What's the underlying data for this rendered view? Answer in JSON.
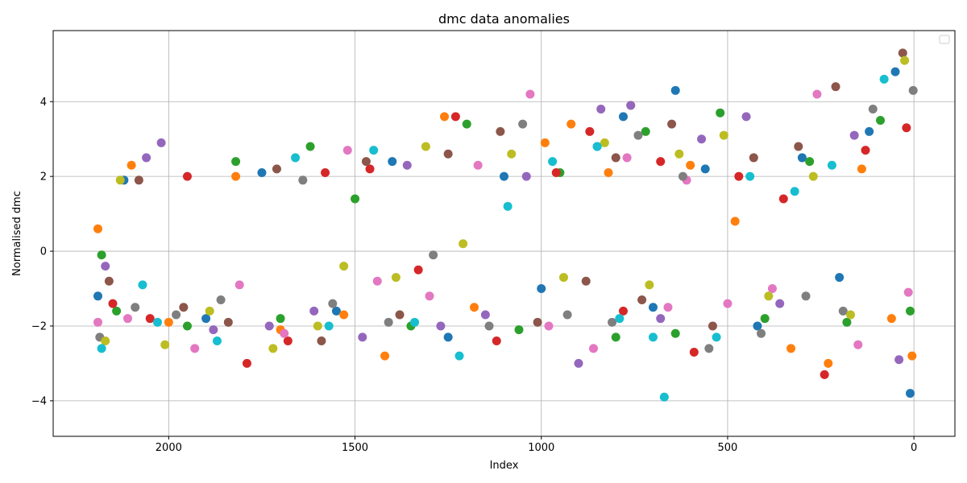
{
  "chart_data": {
    "type": "scatter",
    "title": "dmc data anomalies",
    "xlabel": "Index",
    "ylabel": "Normalised dmc",
    "xlim": [
      2310,
      -110
    ],
    "ylim": [
      -4.95,
      5.9
    ],
    "x_inverted": true,
    "xticks": [
      2000,
      1500,
      1000,
      500,
      0
    ],
    "yticks": [
      -4,
      -2,
      0,
      2,
      4
    ],
    "grid": true,
    "legend": "top-right",
    "legend_entries": [],
    "series_colors": [
      "#1f77b4",
      "#ff7f0e",
      "#2ca02c",
      "#d62728",
      "#9467bd",
      "#8c564b",
      "#e377c2",
      "#7f7f7f",
      "#bcbd22",
      "#17becf"
    ],
    "x_range": [
      0,
      2200
    ],
    "series": [
      {
        "color": "#1f77b4",
        "x": [
          2190,
          2120,
          1900,
          1750,
          1550,
          1400,
          1250,
          1100,
          1000,
          850,
          780,
          700,
          640,
          560,
          420,
          300,
          200,
          120,
          50,
          10
        ],
        "y": [
          -1.2,
          1.9,
          -1.8,
          2.1,
          -1.6,
          2.4,
          -2.3,
          2.0,
          -1.0,
          2.8,
          3.6,
          -1.5,
          4.3,
          2.2,
          -2.0,
          2.5,
          -0.7,
          3.2,
          4.8,
          -3.8
        ]
      },
      {
        "color": "#ff7f0e",
        "x": [
          2190,
          2100,
          2000,
          1820,
          1700,
          1530,
          1420,
          1260,
          1180,
          990,
          920,
          820,
          760,
          600,
          480,
          330,
          230,
          140,
          60,
          5
        ],
        "y": [
          0.6,
          2.3,
          -1.9,
          2.0,
          -2.1,
          -1.7,
          -2.8,
          3.6,
          -1.5,
          2.9,
          3.4,
          2.1,
          3.9,
          2.3,
          0.8,
          -2.6,
          -3.0,
          2.2,
          -1.8,
          -2.8
        ]
      },
      {
        "color": "#2ca02c",
        "x": [
          2180,
          2140,
          1950,
          1820,
          1700,
          1620,
          1500,
          1350,
          1200,
          1060,
          950,
          800,
          720,
          640,
          520,
          400,
          280,
          180,
          90,
          10
        ],
        "y": [
          -0.1,
          -1.6,
          -2.0,
          2.4,
          -1.8,
          2.8,
          1.4,
          -2.0,
          3.4,
          -2.1,
          2.1,
          -2.3,
          3.2,
          -2.2,
          3.7,
          -1.8,
          2.4,
          -1.9,
          3.5,
          -1.6
        ]
      },
      {
        "color": "#d62728",
        "x": [
          2150,
          2050,
          1950,
          1790,
          1680,
          1580,
          1460,
          1330,
          1230,
          1120,
          960,
          870,
          780,
          680,
          590,
          470,
          350,
          240,
          130,
          20
        ],
        "y": [
          -1.4,
          -1.8,
          2.0,
          -3.0,
          -2.4,
          2.1,
          2.2,
          -0.5,
          3.6,
          -2.4,
          2.1,
          3.2,
          -1.6,
          2.4,
          -2.7,
          2.0,
          1.4,
          -3.3,
          2.7,
          3.3
        ]
      },
      {
        "color": "#9467bd",
        "x": [
          2170,
          2060,
          2020,
          1880,
          1730,
          1610,
          1480,
          1360,
          1270,
          1150,
          1040,
          900,
          840,
          760,
          680,
          570,
          450,
          360,
          160,
          40
        ],
        "y": [
          -0.4,
          2.5,
          2.9,
          -2.1,
          -2.0,
          -1.6,
          -2.3,
          2.3,
          -2.0,
          -1.7,
          2.0,
          -3.0,
          3.8,
          3.9,
          -1.8,
          3.0,
          3.6,
          -1.4,
          3.1,
          -2.9
        ]
      },
      {
        "color": "#8c564b",
        "x": [
          2160,
          2080,
          1960,
          1840,
          1710,
          1590,
          1470,
          1380,
          1250,
          1110,
          1010,
          880,
          800,
          730,
          650,
          540,
          430,
          310,
          210,
          30
        ],
        "y": [
          -0.8,
          1.9,
          -1.5,
          -1.9,
          2.2,
          -2.4,
          2.4,
          -1.7,
          2.6,
          3.2,
          -1.9,
          -0.8,
          2.5,
          -1.3,
          3.4,
          -2.0,
          2.5,
          2.8,
          4.4,
          5.3
        ]
      },
      {
        "color": "#e377c2",
        "x": [
          2190,
          2110,
          1930,
          1810,
          1690,
          1520,
          1440,
          1300,
          1170,
          1030,
          980,
          860,
          770,
          660,
          610,
          500,
          380,
          260,
          150,
          15
        ],
        "y": [
          -1.9,
          -1.8,
          -2.6,
          -0.9,
          -2.2,
          2.7,
          -0.8,
          -1.2,
          2.3,
          4.2,
          -2.0,
          -2.6,
          2.5,
          -1.5,
          1.9,
          -1.4,
          -1.0,
          4.2,
          -2.5,
          -1.1
        ]
      },
      {
        "color": "#7f7f7f",
        "x": [
          2185,
          2090,
          1980,
          1860,
          1640,
          1560,
          1410,
          1290,
          1140,
          1050,
          930,
          810,
          740,
          620,
          550,
          410,
          290,
          190,
          110,
          2
        ],
        "y": [
          -2.3,
          -1.5,
          -1.7,
          -1.3,
          1.9,
          -1.4,
          -1.9,
          -0.1,
          -2.0,
          3.4,
          -1.7,
          -1.9,
          3.1,
          2.0,
          -2.6,
          -2.2,
          -1.2,
          -1.6,
          3.8,
          4.3
        ]
      },
      {
        "color": "#bcbd22",
        "x": [
          2170,
          2130,
          2010,
          1890,
          1720,
          1600,
          1530,
          1390,
          1310,
          1210,
          1080,
          940,
          830,
          710,
          630,
          510,
          390,
          270,
          170,
          25
        ],
        "y": [
          -2.4,
          1.9,
          -2.5,
          -1.6,
          -2.6,
          -2.0,
          -0.4,
          -0.7,
          2.8,
          0.2,
          2.6,
          -0.7,
          2.9,
          -0.9,
          2.6,
          3.1,
          -1.2,
          2.0,
          -1.7,
          5.1
        ]
      },
      {
        "color": "#17becf",
        "x": [
          2180,
          2070,
          2030,
          1870,
          1660,
          1570,
          1450,
          1340,
          1220,
          1090,
          970,
          850,
          790,
          700,
          670,
          530,
          440,
          320,
          220,
          80
        ],
        "y": [
          -2.6,
          -0.9,
          -1.9,
          -2.4,
          2.5,
          -2.0,
          2.7,
          -1.9,
          -2.8,
          1.2,
          2.4,
          2.8,
          -1.8,
          -2.3,
          -3.9,
          -2.3,
          2.0,
          1.6,
          2.3,
          4.6
        ]
      }
    ]
  }
}
